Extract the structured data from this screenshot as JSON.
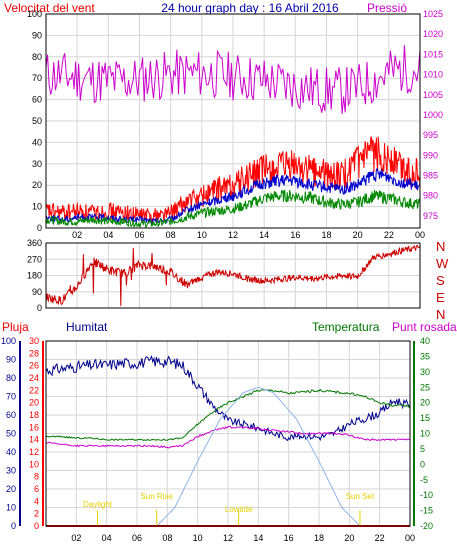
{
  "colors": {
    "bg": "#ffffff",
    "grid": "#d6d6d6",
    "wind_label": "#ee0000",
    "pressure": "#cc00cc",
    "gust": "#ff0000",
    "speed": "#0000cc",
    "avg": "#008800",
    "direction": "#cc0000",
    "rain": "#ff0000",
    "humidity": "#00008b",
    "temperature": "#007700",
    "dewpoint": "#cc00cc",
    "solar": "#8fb4e8",
    "events": "#e6d000",
    "frame": "#000000"
  },
  "chart_data": [
    {
      "id": "wind-pressure",
      "type": "line",
      "title": "24 hour graph day : 16 Abril 2016",
      "left_title": "Velocitat del vent",
      "right_title": "Pressió",
      "x_ticks": [
        "02",
        "04",
        "06",
        "08",
        "10",
        "12",
        "14",
        "16",
        "18",
        "20",
        "22",
        "00"
      ],
      "x_range": [
        0,
        24
      ],
      "y_left_range": [
        0,
        100
      ],
      "y_left_ticks": [
        "100",
        "90",
        "80",
        "70",
        "60",
        "50",
        "40",
        "30",
        "20",
        "10",
        "0"
      ],
      "y_right_range": [
        972,
        1025
      ],
      "y_right_ticks": [
        "1025",
        "1020",
        "1015",
        "1010",
        "1005",
        "1000",
        "995",
        "990",
        "985",
        "980",
        "975"
      ],
      "grid": true,
      "series": [
        {
          "key": "pressure",
          "axis": "right",
          "x": [
            0,
            1,
            2,
            3,
            4,
            5,
            6,
            7,
            8,
            9,
            10,
            11,
            12,
            13,
            14,
            15,
            16,
            17,
            18,
            19,
            20,
            21,
            22,
            23,
            24
          ],
          "values": [
            1010,
            1009.8,
            1009.3,
            1008.8,
            1008.5,
            1008.5,
            1008.8,
            1009.5,
            1010,
            1010.3,
            1010.2,
            1010,
            1009.6,
            1009.2,
            1008.5,
            1007.8,
            1007,
            1006.5,
            1006,
            1006,
            1006.8,
            1008.5,
            1010.5,
            1011.5,
            1011.2
          ]
        },
        {
          "key": "gust",
          "axis": "left",
          "x": [
            0,
            1,
            2,
            3,
            4,
            5,
            6,
            7,
            8,
            9,
            10,
            11,
            12,
            13,
            14,
            15,
            16,
            17,
            18,
            19,
            20,
            21,
            22,
            23,
            24
          ],
          "values": [
            8,
            7,
            8,
            7,
            8,
            7,
            6,
            6,
            7,
            12,
            15,
            18,
            20,
            24,
            27,
            28,
            29,
            27,
            25,
            24,
            30,
            35,
            33,
            28,
            25
          ]
        },
        {
          "key": "speed",
          "axis": "left",
          "x": [
            0,
            1,
            2,
            3,
            4,
            5,
            6,
            7,
            8,
            9,
            10,
            11,
            12,
            13,
            14,
            15,
            16,
            17,
            18,
            19,
            20,
            21,
            22,
            23,
            24
          ],
          "values": [
            5,
            4,
            5,
            5,
            5,
            4,
            4,
            3,
            4,
            8,
            11,
            13,
            15,
            18,
            21,
            22,
            22,
            20,
            19,
            18,
            20,
            25,
            24,
            21,
            19
          ]
        },
        {
          "key": "avg",
          "axis": "left",
          "x": [
            0,
            1,
            2,
            3,
            4,
            5,
            6,
            7,
            8,
            9,
            10,
            11,
            12,
            13,
            14,
            15,
            16,
            17,
            18,
            19,
            20,
            21,
            22,
            23,
            24
          ],
          "values": [
            4,
            3,
            3,
            4,
            3,
            3,
            2,
            2,
            3,
            5,
            7,
            8,
            9,
            11,
            14,
            15,
            15,
            14,
            12,
            11,
            12,
            15,
            14,
            12,
            11
          ]
        }
      ]
    },
    {
      "id": "wind-direction",
      "type": "line",
      "x_range": [
        0,
        24
      ],
      "y_range": [
        0,
        360
      ],
      "y_ticks": [
        "360",
        "270",
        "180",
        "90",
        "0"
      ],
      "right_labels": [
        "N",
        "W",
        "S",
        "E",
        "N"
      ],
      "grid": true,
      "series": [
        {
          "key": "direction",
          "x": [
            0,
            1,
            2,
            3,
            4,
            5,
            6,
            7,
            8,
            9,
            10,
            11,
            12,
            13,
            14,
            15,
            16,
            17,
            18,
            19,
            20,
            21,
            22,
            23,
            24
          ],
          "values": [
            60,
            40,
            120,
            260,
            210,
            190,
            240,
            230,
            200,
            130,
            170,
            200,
            190,
            160,
            150,
            160,
            170,
            165,
            170,
            180,
            175,
            280,
            300,
            320,
            335
          ]
        }
      ]
    },
    {
      "id": "temp-hum",
      "type": "line",
      "titles": {
        "rain": "Pluja",
        "humidity": "Humitat",
        "temperature": "Temperatura",
        "dewpoint": "Punt rosada"
      },
      "x_ticks": [
        "02",
        "04",
        "06",
        "08",
        "10",
        "12",
        "14",
        "16",
        "18",
        "20",
        "22",
        "00"
      ],
      "x_range": [
        0,
        24
      ],
      "y_humidity_range": [
        0,
        100
      ],
      "y_humidity_ticks": [
        "100",
        "90",
        "80",
        "70",
        "60",
        "50",
        "40",
        "30",
        "20",
        "10",
        "0"
      ],
      "y_rain_range": [
        0,
        30
      ],
      "y_rain_ticks": [
        "30",
        "28",
        "26",
        "24",
        "22",
        "20",
        "18",
        "16",
        "14",
        "12",
        "10",
        "8",
        "6",
        "4",
        "2",
        "0"
      ],
      "y_temp_range": [
        -20,
        40
      ],
      "y_temp_ticks": [
        "40",
        "35",
        "30",
        "25",
        "20",
        "15",
        "10",
        "5",
        "0",
        "-5",
        "-10",
        "-15",
        "-20"
      ],
      "grid": true,
      "series": [
        {
          "key": "humidity",
          "axis": "humidity",
          "x": [
            0,
            1,
            2,
            3,
            4,
            5,
            6,
            7,
            8,
            9,
            10,
            11,
            12,
            13,
            14,
            15,
            16,
            17,
            18,
            19,
            20,
            21,
            22,
            23,
            24
          ],
          "values": [
            84,
            85,
            86,
            87,
            87,
            88,
            88,
            89,
            89,
            87,
            76,
            65,
            57,
            55,
            53,
            50,
            48,
            49,
            48,
            50,
            55,
            58,
            61,
            68,
            65
          ]
        },
        {
          "key": "temperature",
          "axis": "temp",
          "x": [
            0,
            1,
            2,
            3,
            4,
            5,
            6,
            7,
            8,
            9,
            10,
            11,
            12,
            13,
            14,
            15,
            16,
            17,
            18,
            19,
            20,
            21,
            22,
            23,
            24
          ],
          "values": [
            9,
            9,
            8.5,
            8.5,
            8,
            8,
            8,
            8,
            8,
            8.5,
            13,
            17,
            20,
            22,
            24,
            24,
            23,
            23.5,
            24,
            23.5,
            23,
            22,
            20,
            19,
            19
          ]
        },
        {
          "key": "dewpoint",
          "axis": "temp",
          "x": [
            0,
            1,
            2,
            3,
            4,
            5,
            6,
            7,
            8,
            9,
            10,
            11,
            12,
            13,
            14,
            15,
            16,
            17,
            18,
            19,
            20,
            21,
            22,
            23,
            24
          ],
          "values": [
            7,
            6.5,
            6,
            6,
            6,
            6,
            6,
            6,
            5.5,
            6,
            9,
            11,
            12,
            12,
            11.5,
            11,
            10.5,
            10,
            10,
            10,
            9.5,
            8,
            8,
            8,
            8
          ]
        },
        {
          "key": "solar",
          "axis": "humidity",
          "x": [
            7.3,
            8.5,
            10,
            11.5,
            13,
            14,
            15,
            16.5,
            18,
            19.5,
            20.7
          ],
          "values": [
            0,
            10,
            35,
            58,
            72,
            75,
            72,
            58,
            35,
            10,
            0
          ]
        },
        {
          "key": "rain",
          "axis": "rain",
          "x": [
            0,
            24
          ],
          "values": [
            0,
            0
          ]
        }
      ],
      "events": [
        {
          "label": "Daylight",
          "x": 3.4
        },
        {
          "label": "Sun Rise",
          "x": 7.3
        },
        {
          "label": "Lowtide",
          "x": 12.7
        },
        {
          "label": "Sun Set",
          "x": 20.7
        }
      ]
    }
  ]
}
